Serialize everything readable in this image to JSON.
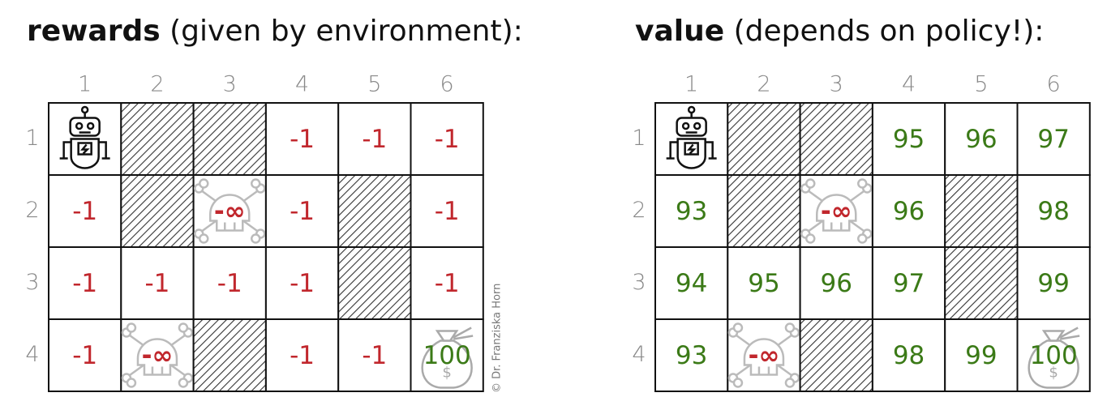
{
  "grids": [
    {
      "title_bold": "rewards",
      "title_rest": " (given by environment):",
      "columns": [
        "1",
        "2",
        "3",
        "4",
        "5",
        "6"
      ],
      "rows": [
        "1",
        "2",
        "3",
        "4"
      ],
      "cells": [
        [
          null,
          null,
          null,
          "-1",
          "-1",
          "-1"
        ],
        [
          "-1",
          null,
          "-∞",
          "-1",
          null,
          "-1"
        ],
        [
          "-1",
          "-1",
          "-1",
          "-1",
          null,
          "-1"
        ],
        [
          "-1",
          "-∞",
          null,
          "-1",
          "-1",
          "100"
        ]
      ]
    },
    {
      "title_bold": "value",
      "title_rest": " (depends on policy!):",
      "columns": [
        "1",
        "2",
        "3",
        "4",
        "5",
        "6"
      ],
      "rows": [
        "1",
        "2",
        "3",
        "4"
      ],
      "cells": [
        [
          null,
          null,
          null,
          "95",
          "96",
          "97"
        ],
        [
          "93",
          null,
          "-∞",
          "96",
          null,
          "98"
        ],
        [
          "94",
          "95",
          "96",
          "97",
          null,
          "99"
        ],
        [
          "93",
          "-∞",
          null,
          "98",
          "99",
          "100"
        ]
      ]
    }
  ],
  "copyright": "© Dr. Franziska Horn"
}
